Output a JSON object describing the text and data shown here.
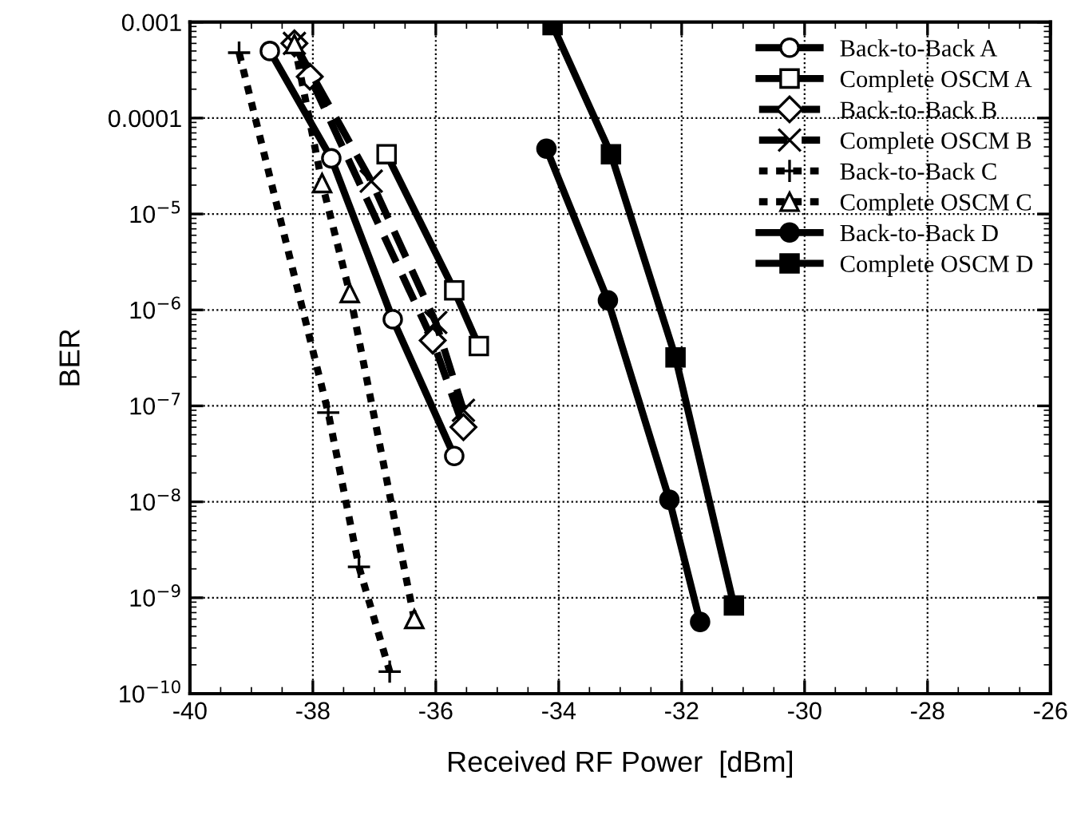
{
  "chart_data": {
    "type": "line",
    "xlabel": "Received RF Power  [dBm]",
    "ylabel": "BER",
    "log": "y",
    "xlim": [
      -40,
      -26
    ],
    "xticks": [
      -40,
      -38,
      -36,
      -34,
      -32,
      -30,
      -28,
      -26
    ],
    "ylim": [
      1e-10,
      0.001
    ],
    "yticks": [
      {
        "value": 1e-10,
        "label": "10$^{−10}$"
      },
      {
        "value": 1e-09,
        "label": "10$^{−9}$"
      },
      {
        "value": 1e-08,
        "label": "10$^{−8}$"
      },
      {
        "value": 1e-07,
        "label": "10$^{−7}$"
      },
      {
        "value": 1e-06,
        "label": "10$^{−6}$"
      },
      {
        "value": 1e-05,
        "label": "10$^{−5}$"
      },
      {
        "value": 0.0001,
        "label": "0.0001"
      },
      {
        "value": 0.001,
        "label": "0.001"
      }
    ],
    "grid": true,
    "legend": "top right",
    "series": [
      {
        "name": "Back-to-Back A",
        "color": "#000000",
        "marker": "circle",
        "line_style": "solid",
        "x": [
          -38.7,
          -37.7,
          -36.7,
          -35.7
        ],
        "values": [
          0.0005,
          3.8e-05,
          8e-07,
          3e-08
        ]
      },
      {
        "name": "Complete OSCM A",
        "color": "#000000",
        "marker": "square",
        "line_style": "solid",
        "x": [
          -36.8,
          -35.7,
          -35.3
        ],
        "values": [
          4.2e-05,
          1.6e-06,
          4.2e-07
        ]
      },
      {
        "name": "Back-to-Back B",
        "color": "#000000",
        "marker": "diamond",
        "line_style": "dashed",
        "x": [
          -38.3,
          -38.05,
          -36.05,
          -35.55
        ],
        "values": [
          0.0006,
          0.00027,
          4.8e-07,
          6e-08
        ]
      },
      {
        "name": "Complete OSCM B",
        "color": "#000000",
        "marker": "cross",
        "line_style": "dashed",
        "x": [
          -38.3,
          -37.05,
          -36.0,
          -35.55
        ],
        "values": [
          0.0006,
          2.2e-05,
          7.4e-07,
          9e-08
        ]
      },
      {
        "name": "Back-to-Back C",
        "color": "#000000",
        "marker": "plus",
        "line_style": "dotted",
        "x": [
          -39.2,
          -37.75,
          -37.25,
          -36.75
        ],
        "values": [
          0.00048,
          8.5e-08,
          2.1e-09,
          1.7e-10
        ]
      },
      {
        "name": "Complete OSCM C",
        "color": "#000000",
        "marker": "triangle",
        "line_style": "dotted",
        "x": [
          -38.3,
          -37.85,
          -37.4,
          -36.35
        ],
        "values": [
          0.00059,
          2.1e-05,
          1.5e-06,
          6e-10
        ]
      },
      {
        "name": "Back-to-Back D",
        "color": "#000000",
        "marker": "circle",
        "line_style": "solid",
        "x": [
          -34.2,
          -33.2,
          -32.2,
          -31.7
        ],
        "values": [
          4.8e-05,
          1.26e-06,
          1.05e-08,
          5.6e-10
        ]
      },
      {
        "name": "Complete OSCM D",
        "color": "#000000",
        "marker": "square",
        "line_style": "solid",
        "x": [
          -34.1,
          -33.15,
          -32.1,
          -31.15
        ],
        "values": [
          0.00093,
          4.2e-05,
          3.2e-07,
          8.3e-10
        ]
      }
    ]
  }
}
